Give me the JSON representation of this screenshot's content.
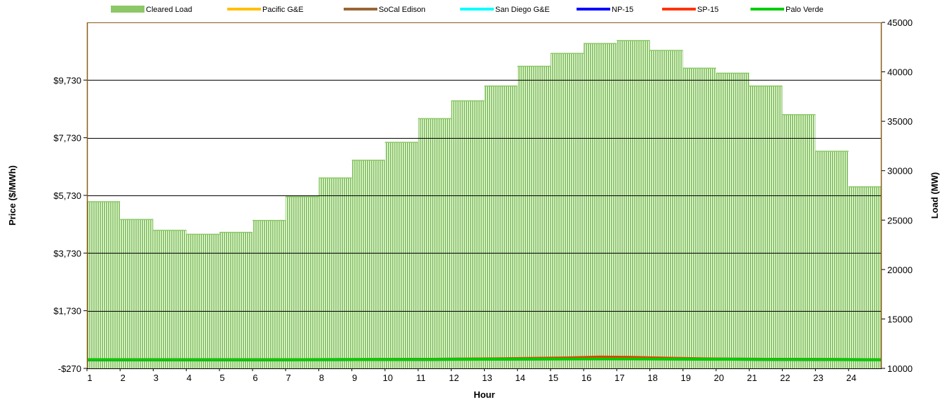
{
  "chart_data": {
    "type": "bar",
    "xlabel": "Hour",
    "ylabel_left": "Price ($/MWh)",
    "ylabel_right": "Load (MW)",
    "x_ticks": [
      "1",
      "2",
      "3",
      "4",
      "5",
      "6",
      "7",
      "8",
      "9",
      "10",
      "11",
      "12",
      "13",
      "14",
      "15",
      "16",
      "17",
      "18",
      "19",
      "20",
      "21",
      "22",
      "23",
      "24"
    ],
    "left_ticks": [
      "-$270",
      "$1,730",
      "$3,730",
      "$5,730",
      "$7,730",
      "$9,730"
    ],
    "left_ylim": [
      -270,
      11730
    ],
    "right_ticks": [
      "10000",
      "15000",
      "20000",
      "25000",
      "30000",
      "35000",
      "40000",
      "45000"
    ],
    "right_ylim": [
      10000,
      45000
    ],
    "grid": "horizontal",
    "legend_position": "top",
    "series": [
      {
        "name": "Cleared Load",
        "axis": "right",
        "kind": "bar",
        "color": "#8cc868",
        "values": [
          26900,
          25100,
          24000,
          23600,
          23800,
          25000,
          27400,
          29300,
          31100,
          32900,
          35300,
          37100,
          38600,
          40600,
          41900,
          42900,
          43200,
          42200,
          40400,
          39900,
          38600,
          35700,
          32000,
          28400
        ]
      },
      {
        "name": "Pacific G&E",
        "axis": "left",
        "kind": "line",
        "color": "#ffc000",
        "values": [
          30,
          30,
          28,
          28,
          28,
          30,
          32,
          34,
          36,
          38,
          42,
          48,
          52,
          58,
          64,
          70,
          68,
          60,
          52,
          48,
          44,
          40,
          36,
          32
        ]
      },
      {
        "name": "SoCal Edison",
        "axis": "left",
        "kind": "line",
        "color": "#996633",
        "values": [
          32,
          31,
          30,
          29,
          30,
          31,
          33,
          36,
          38,
          40,
          45,
          52,
          58,
          66,
          76,
          88,
          84,
          70,
          58,
          52,
          46,
          42,
          38,
          34
        ]
      },
      {
        "name": "San Diego G&E",
        "axis": "left",
        "kind": "line",
        "color": "#00ffff",
        "values": [
          32,
          31,
          30,
          29,
          30,
          31,
          33,
          36,
          38,
          40,
          45,
          52,
          58,
          66,
          76,
          88,
          84,
          70,
          58,
          52,
          46,
          42,
          38,
          34
        ]
      },
      {
        "name": "NP-15",
        "axis": "left",
        "kind": "line",
        "color": "#0000ff",
        "values": [
          28,
          28,
          27,
          27,
          27,
          28,
          30,
          32,
          34,
          36,
          40,
          45,
          50,
          55,
          60,
          66,
          64,
          57,
          50,
          46,
          42,
          38,
          34,
          30
        ]
      },
      {
        "name": "SP-15",
        "axis": "left",
        "kind": "line",
        "color": "#ff3300",
        "values": [
          32,
          31,
          30,
          29,
          30,
          31,
          33,
          36,
          38,
          40,
          46,
          55,
          62,
          80,
          95,
          125,
          115,
          85,
          62,
          54,
          47,
          43,
          38,
          34
        ]
      },
      {
        "name": "Palo Verde",
        "axis": "left",
        "kind": "line",
        "color": "#00cc00",
        "values": [
          30,
          29,
          28,
          28,
          28,
          29,
          31,
          33,
          35,
          37,
          40,
          44,
          48,
          52,
          56,
          60,
          58,
          54,
          48,
          45,
          42,
          38,
          35,
          32
        ]
      }
    ]
  }
}
